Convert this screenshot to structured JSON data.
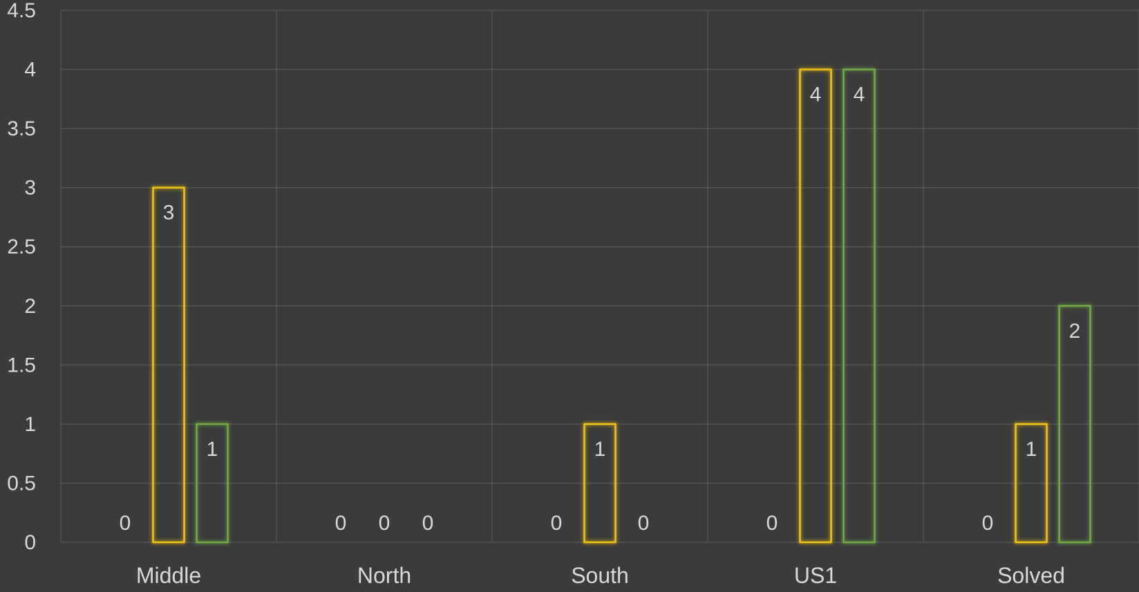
{
  "chart_data": {
    "type": "bar",
    "title": "",
    "xlabel": "",
    "ylabel": "",
    "ylim": [
      0,
      4.5
    ],
    "y_ticks": [
      "0",
      "0.5",
      "1",
      "1.5",
      "2",
      "2.5",
      "3",
      "3.5",
      "4",
      "4.5"
    ],
    "grid": true,
    "legend": "none",
    "categories": [
      "Middle",
      "North",
      "South",
      "US1",
      "Solved"
    ],
    "series": [
      {
        "values": [
          0,
          0,
          0,
          0,
          0
        ],
        "color": "#9e9e9e"
      },
      {
        "values": [
          3,
          0,
          1,
          4,
          1
        ],
        "color": "#f2c314"
      },
      {
        "values": [
          1,
          0,
          0,
          4,
          2
        ],
        "color": "#70ad47"
      }
    ]
  }
}
